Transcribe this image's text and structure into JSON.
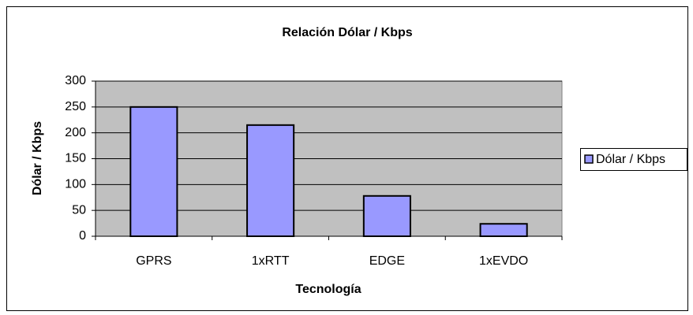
{
  "chart_data": {
    "type": "bar",
    "title": "Relación Dólar / Kbps",
    "x_label": "Tecnología",
    "y_label": "Dólar / Kbps",
    "categories": [
      "GPRS",
      "1xRTT",
      "EDGE",
      "1xEVDO"
    ],
    "series": [
      {
        "name": "Dólar / Kbps",
        "color": "#9999ff",
        "values": [
          250,
          215,
          78,
          24
        ]
      }
    ],
    "ylim": [
      0,
      300
    ],
    "yticks": [
      0,
      50,
      100,
      150,
      200,
      250,
      300
    ],
    "grid": true,
    "legend": "right"
  }
}
